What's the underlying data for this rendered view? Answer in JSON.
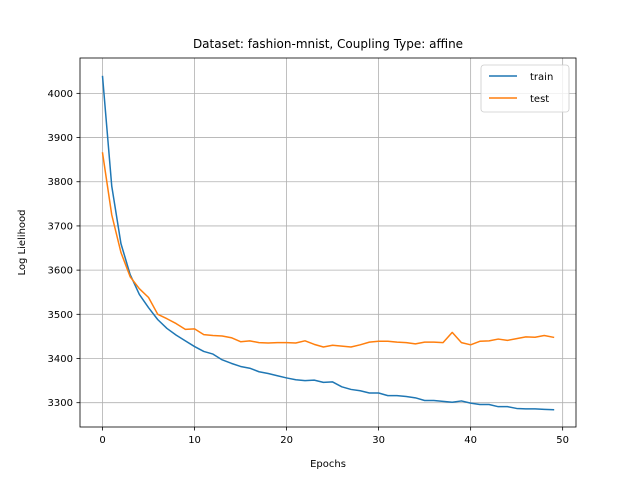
{
  "chart_data": {
    "type": "line",
    "title": "Dataset: fashion-mnist, Coupling Type: affine",
    "xlabel": "Epochs",
    "ylabel": "Log Lielihood",
    "xlim": [
      -2.45,
      51.45
    ],
    "ylim": [
      3245,
      4080
    ],
    "xticks": [
      0,
      10,
      20,
      30,
      40,
      50
    ],
    "yticks": [
      3300,
      3400,
      3500,
      3600,
      3700,
      3800,
      3900,
      4000
    ],
    "grid": true,
    "legend_position": "top-right",
    "x": [
      0,
      1,
      2,
      3,
      4,
      5,
      6,
      7,
      8,
      9,
      10,
      11,
      12,
      13,
      14,
      15,
      16,
      17,
      18,
      19,
      20,
      21,
      22,
      23,
      24,
      25,
      26,
      27,
      28,
      29,
      30,
      31,
      32,
      33,
      34,
      35,
      36,
      37,
      38,
      39,
      40,
      41,
      42,
      43,
      44,
      45,
      46,
      47,
      48,
      49
    ],
    "series": [
      {
        "name": "train",
        "color": "#1f77b4",
        "values": [
          4038,
          3790,
          3660,
          3590,
          3545,
          3515,
          3488,
          3468,
          3453,
          3440,
          3427,
          3416,
          3410,
          3397,
          3389,
          3382,
          3378,
          3370,
          3366,
          3361,
          3356,
          3352,
          3350,
          3351,
          3346,
          3347,
          3336,
          3330,
          3327,
          3322,
          3322,
          3316,
          3316,
          3314,
          3311,
          3305,
          3305,
          3303,
          3301,
          3304,
          3299,
          3296,
          3296,
          3291,
          3291,
          3287,
          3286,
          3286,
          3285,
          3284
        ]
      },
      {
        "name": "test",
        "color": "#ff7f0e",
        "values": [
          3865,
          3725,
          3640,
          3585,
          3558,
          3538,
          3500,
          3490,
          3479,
          3466,
          3467,
          3454,
          3452,
          3451,
          3447,
          3438,
          3440,
          3436,
          3435,
          3436,
          3436,
          3435,
          3440,
          3432,
          3426,
          3430,
          3428,
          3426,
          3431,
          3437,
          3439,
          3439,
          3437,
          3436,
          3433,
          3437,
          3437,
          3436,
          3459,
          3436,
          3431,
          3439,
          3440,
          3444,
          3441,
          3445,
          3449,
          3448,
          3452,
          3448
        ]
      }
    ]
  }
}
